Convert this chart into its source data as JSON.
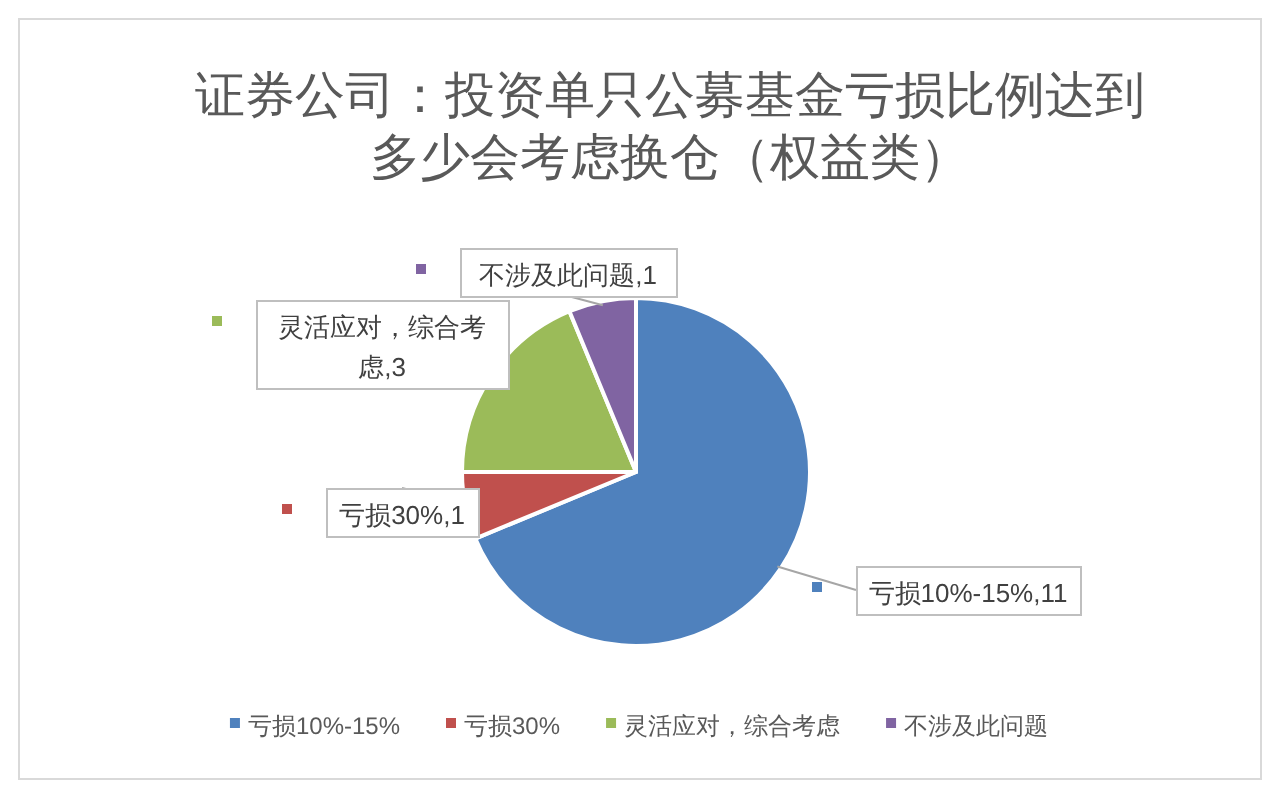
{
  "chart_data": {
    "type": "pie",
    "title": "证券公司：投资单只公募基金亏损比例达到多少会考虑换仓（权益类）",
    "categories": [
      "亏损10%-15%",
      "亏损30%",
      "灵活应对，综合考虑",
      "不涉及此问题"
    ],
    "values": [
      11,
      1,
      3,
      1
    ],
    "colors": [
      "#4f81bd",
      "#c0504d",
      "#9bbb59",
      "#8064a2"
    ],
    "value_labels": [
      "亏损10%-15%,11",
      "亏损30%,1",
      "灵活应对，综合考虑,3",
      "不涉及此问题,1"
    ],
    "legend": "bottom"
  }
}
